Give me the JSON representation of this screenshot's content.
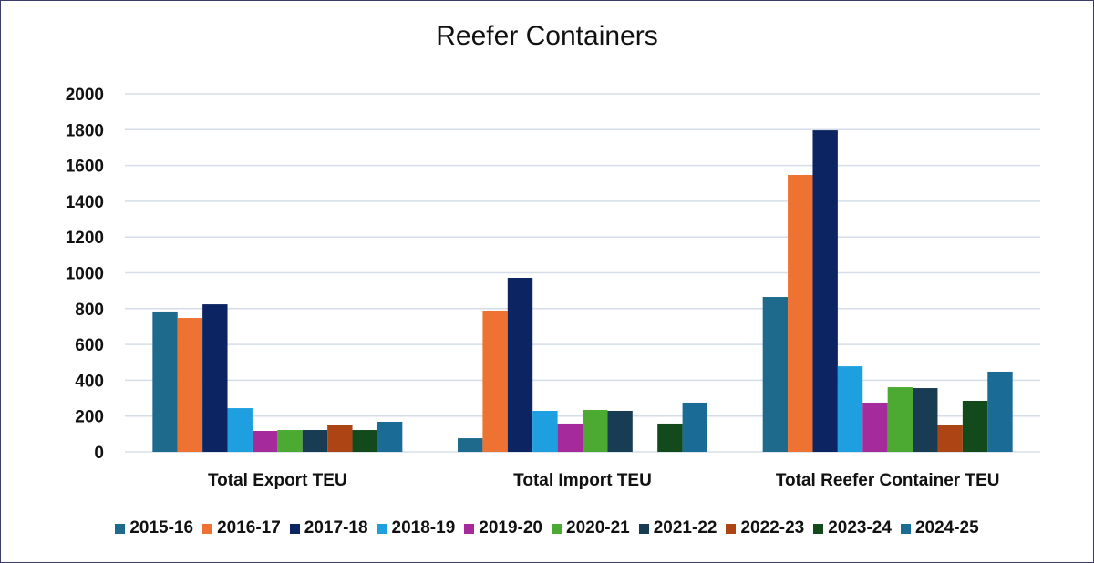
{
  "chart_data": {
    "type": "bar",
    "title": "Reefer Containers",
    "categories": [
      "Total Export TEU",
      "Total Import TEU",
      "Total Reefer Container TEU"
    ],
    "ylim": [
      0,
      2000
    ],
    "yticks": [
      0,
      200,
      400,
      600,
      800,
      1000,
      1200,
      1400,
      1600,
      1800,
      2000
    ],
    "grid": true,
    "legend": "bottom",
    "series": [
      {
        "name": "2015-16",
        "color": "#1d6a8c",
        "values": [
          784,
          76,
          865
        ]
      },
      {
        "name": "2016-17",
        "color": "#ee7333",
        "values": [
          748,
          789,
          1547
        ]
      },
      {
        "name": "2017-18",
        "color": "#0c2461",
        "values": [
          824,
          972,
          1796
        ]
      },
      {
        "name": "2018-19",
        "color": "#1ea0e0",
        "values": [
          244,
          229,
          478
        ]
      },
      {
        "name": "2019-20",
        "color": "#a52a9c",
        "values": [
          117,
          158,
          275
        ]
      },
      {
        "name": "2020-21",
        "color": "#4caa32",
        "values": [
          122,
          234,
          361
        ]
      },
      {
        "name": "2021-22",
        "color": "#173c53",
        "values": [
          122,
          229,
          356
        ]
      },
      {
        "name": "2022-23",
        "color": "#ad4414",
        "values": [
          148,
          0,
          148
        ]
      },
      {
        "name": "2023-24",
        "color": "#124a1c",
        "values": [
          122,
          158,
          285
        ]
      },
      {
        "name": "2024-25",
        "color": "#1a6b96",
        "values": [
          168,
          275,
          448
        ]
      }
    ]
  }
}
